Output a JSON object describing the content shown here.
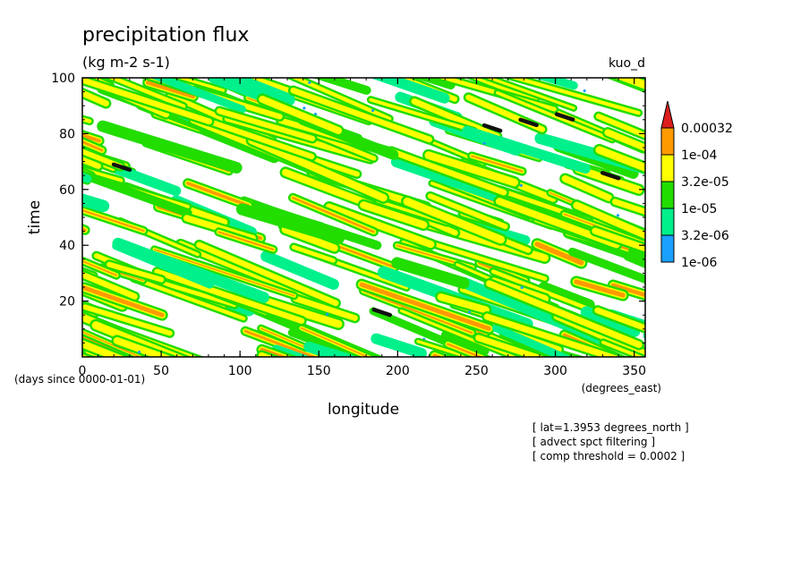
{
  "chart_data": {
    "type": "heatmap",
    "title": "precipitation flux",
    "subtitle": "(kg m-2 s-1)",
    "dataset_label": "kuo_d",
    "xlabel": "longitude",
    "ylabel": "time",
    "x_units": "(degrees_east)",
    "y_units": "(days since 0000-01-01)",
    "xlim": [
      0,
      357
    ],
    "ylim": [
      0,
      100
    ],
    "x_ticks": [
      "0",
      "50",
      "100",
      "150",
      "200",
      "250",
      "300",
      "350"
    ],
    "y_ticks": [
      "20",
      "40",
      "60",
      "80",
      "100"
    ],
    "colorbar": {
      "labels": [
        "0.00032",
        "1e-04",
        "3.2e-05",
        "1e-05",
        "3.2e-06",
        "1e-06"
      ],
      "colors": [
        "#dd1e1e",
        "#ff9a00",
        "#ffff00",
        "#22dd00",
        "#00f08c",
        "#1aa0ff"
      ]
    },
    "notes": [
      "[ lat=1.3953 degrees_north ]",
      "[ advect spct filtering ]",
      "[ comp threshold = 0.0002 ]"
    ],
    "pattern": "diagonal streaks descending left-to-right (westward-propagating precipitation bands)",
    "strong_events": [
      {
        "lon": 25,
        "time": 68
      },
      {
        "lon": 260,
        "time": 82
      },
      {
        "lon": 283,
        "time": 84
      },
      {
        "lon": 306,
        "time": 86
      },
      {
        "lon": 335,
        "time": 65
      },
      {
        "lon": 190,
        "time": 16
      }
    ]
  }
}
